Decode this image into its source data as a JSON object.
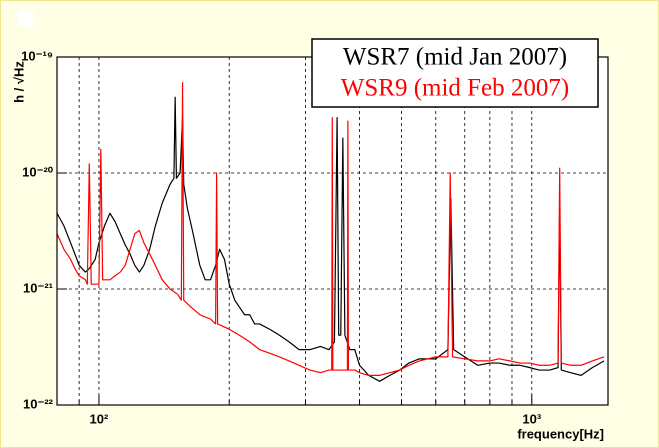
{
  "chart_data": {
    "type": "line",
    "ylabel": "h / √Hz",
    "xlabel": "frequency[Hz]",
    "xscale": "log",
    "yscale": "log",
    "grid": true,
    "xlim": [
      80,
      1500
    ],
    "ylim": [
      1e-22,
      1e-19
    ],
    "xticks": [
      {
        "value": 100,
        "label": "10²"
      },
      {
        "value": 1000,
        "label": "10³"
      }
    ],
    "xminor_ticks": [
      90,
      200,
      300,
      400,
      500,
      600,
      700,
      800,
      900
    ],
    "yticks": [
      {
        "value": 1e-22,
        "label": "10⁻²²"
      },
      {
        "value": 1e-21,
        "label": "10⁻²¹"
      },
      {
        "value": 1e-20,
        "label": "10⁻²⁰"
      },
      {
        "value": 1e-19,
        "label": "10⁻¹⁹"
      }
    ],
    "legend": "top-right",
    "series": [
      {
        "name": "WSR7 (mid Jan 2007)",
        "color": "#000000",
        "x": [
          80,
          83,
          86,
          88,
          90,
          93,
          95,
          98,
          100,
          103,
          106,
          109,
          112,
          115,
          118,
          121,
          124,
          127,
          131,
          135,
          140,
          146,
          149,
          150,
          151,
          154,
          156,
          157,
          160,
          165,
          171,
          176,
          181,
          186,
          190,
          195,
          200,
          206,
          211,
          217,
          223,
          229,
          235,
          248,
          261,
          275,
          290,
          307,
          325,
          340,
          350,
          355,
          358,
          362,
          366,
          370,
          380,
          390,
          400,
          420,
          445,
          470,
          495,
          520,
          550,
          600,
          640,
          650,
          660,
          700,
          750,
          800,
          840,
          890,
          940,
          990,
          1040,
          1100,
          1150,
          1160,
          1170,
          1230,
          1300,
          1380,
          1470
        ],
        "values": [
          4.5e-21,
          3.5e-21,
          2.5e-21,
          2e-21,
          1.6e-21,
          1.4e-21,
          1.5e-21,
          1.8e-21,
          2.5e-21,
          3.5e-21,
          4.5e-21,
          3.8e-21,
          3e-21,
          2.4e-21,
          2e-21,
          1.6e-21,
          1.4e-21,
          1.6e-21,
          2.2e-21,
          3.5e-21,
          5.5e-21,
          8e-21,
          9e-21,
          4.5e-20,
          9e-21,
          1e-20,
          3e-20,
          8e-21,
          5e-21,
          3e-21,
          1.6e-21,
          1.2e-21,
          1.2e-21,
          1.6e-21,
          2.2e-21,
          1.8e-21,
          1.1e-21,
          8e-22,
          7e-22,
          6e-22,
          6e-22,
          5e-22,
          5e-22,
          4.5e-22,
          4e-22,
          3.5e-22,
          3e-22,
          3e-22,
          3.2e-22,
          3e-22,
          3.5e-22,
          3e-20,
          4e-22,
          4e-22,
          2e-20,
          4e-22,
          3e-22,
          3e-22,
          2.2e-22,
          1.8e-22,
          1.6e-22,
          1.8e-22,
          2e-22,
          2.3e-22,
          2.5e-22,
          2.5e-22,
          3e-22,
          6e-21,
          3e-22,
          2.6e-22,
          2.2e-22,
          2.3e-22,
          2.3e-22,
          2.2e-22,
          2.2e-22,
          2.1e-22,
          2e-22,
          2e-22,
          2.1e-22,
          5e-21,
          2e-22,
          1.9e-22,
          1.8e-22,
          2.1e-22,
          2.4e-22
        ]
      },
      {
        "name": "WSR9 (mid Feb 2007)",
        "color": "#ff0000",
        "x": [
          80,
          83,
          86,
          88,
          90,
          93,
          94,
          95,
          96,
          98,
          100,
          101,
          102,
          106,
          109,
          112,
          115,
          118,
          121,
          124,
          127,
          131,
          135,
          140,
          146,
          152,
          155,
          156,
          157,
          163,
          171,
          181,
          186,
          187,
          188,
          200,
          211,
          223,
          235,
          248,
          261,
          275,
          290,
          307,
          325,
          340,
          345,
          346,
          347,
          360,
          375,
          376,
          377,
          390,
          400,
          420,
          445,
          470,
          495,
          520,
          550,
          600,
          640,
          648,
          656,
          700,
          750,
          800,
          840,
          890,
          940,
          990,
          1040,
          1100,
          1150,
          1160,
          1170,
          1230,
          1300,
          1380,
          1470
        ],
        "values": [
          3e-21,
          2.2e-21,
          1.8e-21,
          1.5e-21,
          1.3e-21,
          1.2e-21,
          1.1e-21,
          1.2e-20,
          1.1e-21,
          1.1e-21,
          1.1e-21,
          1.6e-20,
          1.2e-21,
          1.2e-21,
          1.3e-21,
          1.4e-21,
          1.6e-21,
          2.2e-21,
          3e-21,
          3.2e-21,
          2.5e-21,
          2e-21,
          1.6e-21,
          1.2e-21,
          1e-21,
          9e-22,
          8e-22,
          6e-20,
          8e-22,
          7e-22,
          6e-22,
          5.5e-22,
          5e-22,
          1e-20,
          5e-22,
          4.5e-22,
          4e-22,
          3.5e-22,
          3e-22,
          2.8e-22,
          2.6e-22,
          2.4e-22,
          2.2e-22,
          2e-22,
          1.9e-22,
          2e-22,
          2e-22,
          3e-20,
          2e-22,
          2e-22,
          2e-22,
          2.8e-20,
          2e-22,
          2e-22,
          1.9e-22,
          1.8e-22,
          1.8e-22,
          1.9e-22,
          2e-22,
          2.2e-22,
          2.4e-22,
          2.6e-22,
          2.6e-22,
          1e-20,
          2.6e-22,
          2.5e-22,
          2.4e-22,
          2.4e-22,
          2.5e-22,
          2.4e-22,
          2.3e-22,
          2.3e-22,
          2.2e-22,
          2.2e-22,
          2.3e-22,
          1.1e-20,
          2.3e-22,
          2.2e-22,
          2.2e-22,
          2.4e-22,
          2.6e-22
        ]
      }
    ]
  }
}
